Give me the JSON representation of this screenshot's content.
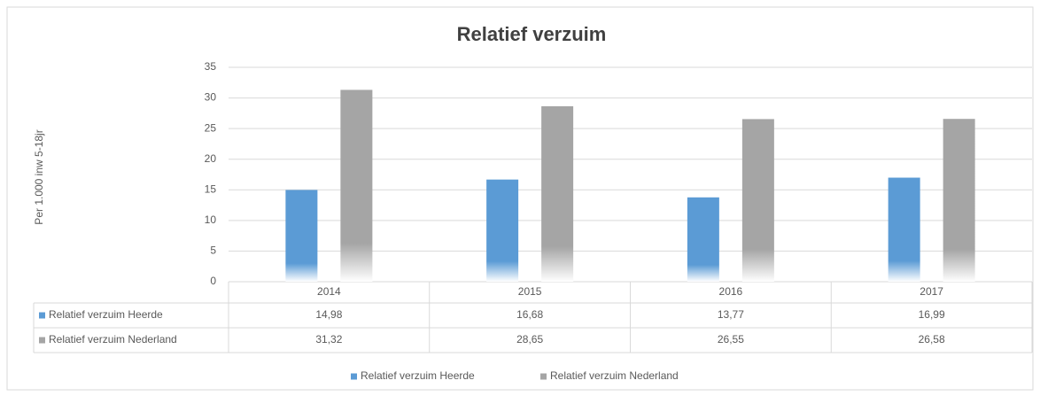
{
  "chart_data": {
    "type": "bar",
    "title": "Relatief verzuim",
    "ylabel": "Per 1.000 inw 5-18jr",
    "categories": [
      "2014",
      "2015",
      "2016",
      "2017"
    ],
    "series": [
      {
        "name": "Relatief verzuim Heerde",
        "color": "#5b9bd5",
        "values": [
          14.98,
          16.68,
          13.77,
          16.99
        ],
        "value_labels": [
          "14,98",
          "16,68",
          "13,77",
          "16,99"
        ]
      },
      {
        "name": "Relatief verzuim Nederland",
        "color": "#a5a5a5",
        "values": [
          31.32,
          28.65,
          26.55,
          26.58
        ],
        "value_labels": [
          "31,32",
          "28,65",
          "26,55",
          "26,58"
        ]
      }
    ],
    "ylim": [
      0,
      35
    ],
    "yticks": [
      0,
      5,
      10,
      15,
      20,
      25,
      30,
      35
    ],
    "grid": true,
    "legend": "bottom"
  }
}
